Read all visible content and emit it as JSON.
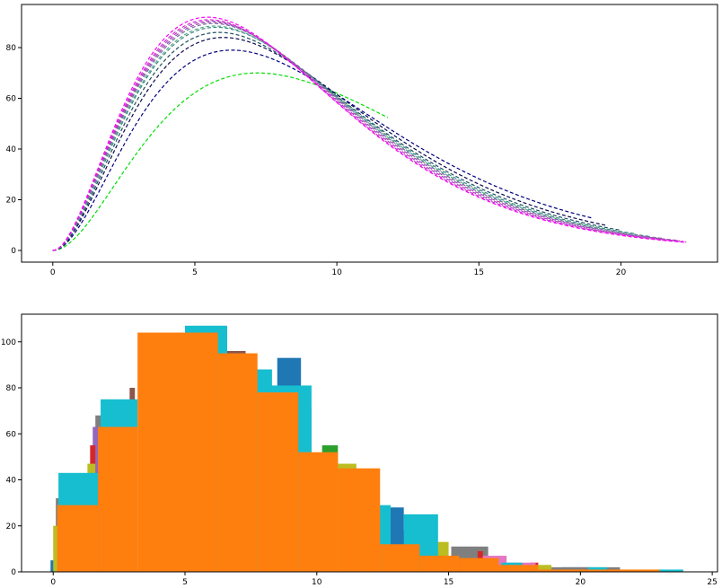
{
  "chart_data": [
    {
      "type": "line",
      "title": "",
      "xlabel": "",
      "ylabel": "",
      "xlim": [
        -1.1,
        23.4
      ],
      "ylim": [
        -4.6,
        97
      ],
      "xticks": [
        0,
        5,
        10,
        15,
        20
      ],
      "yticks": [
        0,
        20,
        40,
        60,
        80
      ],
      "grid": false,
      "series": [
        {
          "color": "#00dd00",
          "peak_x": 7.2,
          "peak_y": 70,
          "x_end": 11.8
        },
        {
          "color": "#000080",
          "peak_x": 6.3,
          "peak_y": 79,
          "x_end": 19.0
        },
        {
          "color": "#0a0a50",
          "peak_x": 6.0,
          "peak_y": 84,
          "x_end": 19.5
        },
        {
          "color": "#205060",
          "peak_x": 5.85,
          "peak_y": 86,
          "x_end": 20.0
        },
        {
          "color": "#3a8a80",
          "peak_x": 5.75,
          "peak_y": 88,
          "x_end": 20.5
        },
        {
          "color": "#5aaa90",
          "peak_x": 5.7,
          "peak_y": 88.5,
          "x_end": 21.0
        },
        {
          "color": "#7a6aa0",
          "peak_x": 5.65,
          "peak_y": 89.5,
          "x_end": 21.5
        },
        {
          "color": "#9a50b0",
          "peak_x": 5.6,
          "peak_y": 90,
          "x_end": 22.0
        },
        {
          "color": "#b040c0",
          "peak_x": 5.55,
          "peak_y": 90.5,
          "x_end": 22.2
        },
        {
          "color": "#d030d0",
          "peak_x": 5.5,
          "peak_y": 91,
          "x_end": 22.3
        },
        {
          "color": "#ff00ff",
          "peak_x": 5.45,
          "peak_y": 92,
          "x_end": 22.3
        }
      ]
    },
    {
      "type": "bar",
      "title": "",
      "xlabel": "",
      "ylabel": "",
      "xlim": [
        -1.2,
        25.2
      ],
      "ylim": [
        0,
        112
      ],
      "xticks": [
        0,
        5,
        10,
        15,
        20,
        25
      ],
      "yticks": [
        0,
        20,
        40,
        60,
        80,
        100
      ],
      "grid": false,
      "series": [
        {
          "color": "#1f77b4",
          "bins": [
            [
              -0.1,
              0.1,
              5
            ],
            [
              8.5,
              9.4,
              93
            ],
            [
              12.3,
              13.3,
              28
            ],
            [
              13.2,
              14.4,
              18
            ],
            [
              19.3,
              20.4,
              2
            ]
          ]
        },
        {
          "color": "#7f7f7f",
          "bins": [
            [
              0.1,
              0.3,
              32
            ],
            [
              1.6,
              1.9,
              68
            ],
            [
              9.3,
              9.8,
              71
            ],
            [
              15.1,
              16.5,
              11
            ],
            [
              18.5,
              21.5,
              2
            ]
          ]
        },
        {
          "color": "#9467bd",
          "bins": [
            [
              1.5,
              1.8,
              63
            ]
          ]
        },
        {
          "color": "#d62728",
          "bins": [
            [
              1.4,
              1.6,
              55
            ],
            [
              16.1,
              16.3,
              9
            ],
            [
              18.1,
              18.4,
              4
            ]
          ]
        },
        {
          "color": "#2ca02c",
          "bins": [
            [
              10.2,
              10.8,
              55
            ],
            [
              6.2,
              6.6,
              105
            ]
          ]
        },
        {
          "color": "#8c564b",
          "bins": [
            [
              2.9,
              3.1,
              80
            ],
            [
              6.4,
              7.3,
              96
            ]
          ]
        },
        {
          "color": "#e377c2",
          "bins": [
            [
              16.3,
              17.2,
              7
            ],
            [
              17.2,
              18.3,
              4
            ]
          ]
        },
        {
          "color": "#bcbd22",
          "bins": [
            [
              1.3,
              1.6,
              47
            ],
            [
              10.7,
              11.5,
              47
            ],
            [
              14.3,
              15.0,
              13
            ],
            [
              18.3,
              18.9,
              3
            ],
            [
              0.0,
              0.2,
              20
            ]
          ]
        },
        {
          "color": "#17becf",
          "bins": [
            [
              0.2,
              1.7,
              43
            ],
            [
              1.8,
              3.2,
              75
            ],
            [
              5.0,
              6.6,
              107
            ],
            [
              7.6,
              8.3,
              88
            ],
            [
              8.2,
              9.8,
              81
            ],
            [
              13.3,
              14.6,
              25
            ],
            [
              12.3,
              12.8,
              29
            ],
            [
              17.0,
              17.8,
              4
            ],
            [
              20.3,
              21.0,
              2
            ],
            [
              22.9,
              23.9,
              1
            ]
          ]
        },
        {
          "color": "#ff7f0e",
          "bins": [
            [
              0.15,
              1.7,
              29
            ],
            [
              1.7,
              3.2,
              63
            ],
            [
              3.2,
              6.25,
              104
            ],
            [
              6.25,
              7.75,
              95
            ],
            [
              7.75,
              9.3,
              78
            ],
            [
              9.3,
              10.8,
              52
            ],
            [
              10.8,
              12.4,
              45
            ],
            [
              12.4,
              13.9,
              12
            ],
            [
              13.9,
              15.4,
              7
            ],
            [
              15.4,
              16.9,
              6
            ],
            [
              16.9,
              18.4,
              3
            ],
            [
              18.4,
              20.0,
              1
            ],
            [
              20.0,
              23.0,
              1
            ]
          ]
        }
      ]
    }
  ]
}
